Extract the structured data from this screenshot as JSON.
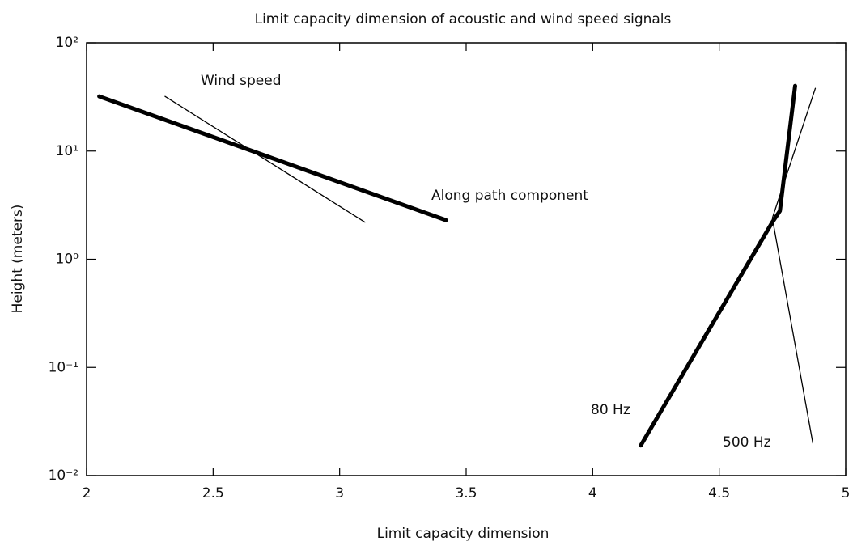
{
  "chart_data": {
    "type": "line",
    "title": "Limit capacity dimension of acoustic and wind speed signals",
    "xlabel": "Limit capacity dimension",
    "ylabel": "Height (meters)",
    "xlim": [
      2,
      5
    ],
    "xticks": [
      2,
      2.5,
      3,
      3.5,
      4,
      4.5,
      5
    ],
    "ylim": [
      0.01,
      100
    ],
    "ylog": true,
    "yticks": [
      {
        "value": 0.01,
        "label": "10⁻²"
      },
      {
        "value": 0.1,
        "label": "10⁻¹"
      },
      {
        "value": 1,
        "label": "10⁰"
      },
      {
        "value": 10,
        "label": "10¹"
      },
      {
        "value": 100,
        "label": "10²"
      }
    ],
    "series": [
      {
        "name": "Along path component",
        "color": "#000000",
        "linewidth": 5,
        "x": [
          2.05,
          3.42
        ],
        "values": [
          32,
          2.3
        ]
      },
      {
        "name": "Wind speed",
        "color": "#000000",
        "linewidth": 1.3,
        "x": [
          2.31,
          3.1
        ],
        "values": [
          32,
          2.2
        ]
      },
      {
        "name": "80 Hz",
        "color": "#000000",
        "linewidth": 5,
        "x": [
          4.19,
          4.71,
          4.74,
          4.8
        ],
        "values": [
          0.019,
          2.2,
          2.8,
          40
        ]
      },
      {
        "name": "500 Hz",
        "color": "#000000",
        "linewidth": 1.3,
        "x": [
          4.88,
          4.71,
          4.87
        ],
        "values": [
          38,
          2.4,
          0.02
        ]
      }
    ]
  }
}
